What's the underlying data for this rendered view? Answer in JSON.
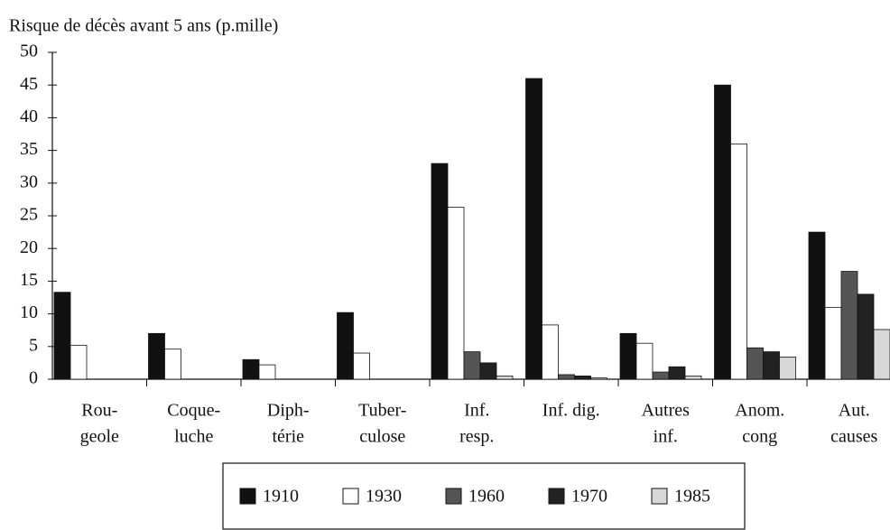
{
  "chart_data": {
    "type": "bar",
    "title": "Risque de décès avant 5 ans (p.mille)",
    "categories": [
      [
        "Rou-",
        "geole"
      ],
      [
        "Coque-",
        "luche"
      ],
      [
        "Diph-",
        "térie"
      ],
      [
        "Tuber-",
        "culose"
      ],
      [
        "Inf.",
        "resp."
      ],
      [
        "Inf. dig."
      ],
      [
        "Autres",
        "inf."
      ],
      [
        "Anom.",
        "cong"
      ],
      [
        "Aut.",
        "causes"
      ]
    ],
    "series": [
      {
        "name": "1910",
        "color": "#111111",
        "values": [
          13.3,
          7.0,
          3.0,
          10.2,
          33.0,
          46.0,
          7.0,
          45.0,
          22.5
        ]
      },
      {
        "name": "1930",
        "color": "#ffffff",
        "values": [
          5.2,
          4.6,
          2.2,
          4.0,
          26.3,
          8.3,
          5.5,
          36.0,
          11.0
        ]
      },
      {
        "name": "1960",
        "color": "#555555",
        "values": [
          0,
          0,
          0,
          0,
          4.2,
          0.7,
          1.1,
          4.8,
          16.5
        ]
      },
      {
        "name": "1970",
        "color": "#222222",
        "values": [
          0,
          0,
          0,
          0,
          2.5,
          0.5,
          1.9,
          4.2,
          13.0
        ]
      },
      {
        "name": "1985",
        "color": "#d8d8d8",
        "values": [
          0,
          0,
          0,
          0,
          0.5,
          0.2,
          0.5,
          3.4,
          7.6
        ]
      }
    ],
    "ylim": [
      0,
      50
    ],
    "yticks": [
      0,
      5,
      10,
      15,
      20,
      25,
      30,
      35,
      40,
      45,
      50
    ]
  }
}
